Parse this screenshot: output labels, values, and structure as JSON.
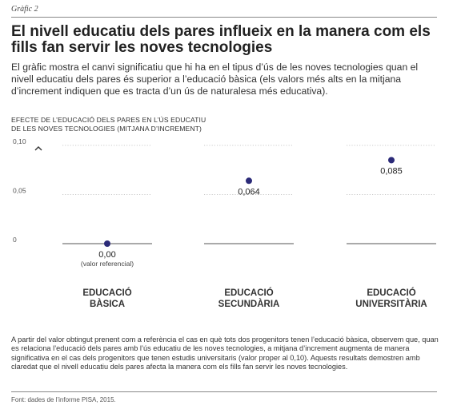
{
  "figure_label": "Gràfic 2",
  "title": "El nivell educatiu dels pares influeix en la manera com els fills fan servir les noves tecnologies",
  "subtitle": "El gràfic mostra el canvi significatiu que hi ha en el tipus d’ús de les noves tecnologies quan el nivell educatiu dels pares és superior a l’educació bàsica (els valors més alts en la mitjana d’increment indiquen que es tracta d’un ús de naturalesa més educativa).",
  "note": "A partir del valor obtingut prenent com a referència el cas en què tots dos progenitors tenen l’educació bàsica, observem que, quan es relaciona l’educació dels pares amb l’ús educatiu de les noves tecnologies, a mitjana d’increment augmenta de manera significativa en el cas dels progenitors que tenen estudis universitaris (valor proper al 0,10). Aquests resultats demostren amb claredat que el nivell educatiu dels pares afecta la manera com els fills fan servir les noves tecnologies.",
  "source": "Font: dades de l’informe PISA, 2015.",
  "colors": {
    "point": "#2b2a78",
    "baseline": "#555555",
    "grid": "#bbbbbb"
  },
  "chart_data": {
    "type": "scatter",
    "title_lines": [
      "EFECTE DE L’EDUCACIÓ DELS PARES EN L’ÚS EDUCATIU",
      "DE LES NOVES TECNOLOGIES (MITJANA D’INCREMENT)"
    ],
    "ylim": [
      0,
      0.1
    ],
    "yticks": [
      0,
      0.05,
      0.1
    ],
    "ytick_labels": [
      "0",
      "0,05",
      "0,10"
    ],
    "grid": true,
    "categories": [
      {
        "lines": [
          "EDUCACIÓ",
          "BÀSICA"
        ]
      },
      {
        "lines": [
          "EDUCACIÓ",
          "SECUNDÀRIA"
        ]
      },
      {
        "lines": [
          "EDUCACIÓ",
          "UNIVERSITÀRIA"
        ]
      }
    ],
    "values": [
      0.0,
      0.064,
      0.085
    ],
    "value_labels": [
      "0,00",
      "0,064",
      "0,085"
    ],
    "annotations": [
      "(valor referencial)",
      "",
      ""
    ]
  }
}
